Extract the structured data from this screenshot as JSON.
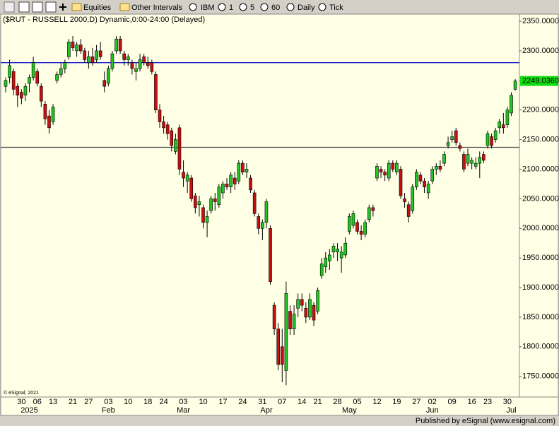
{
  "toolbar": {
    "items": [
      "Equities",
      "Other Intervals",
      "IBM",
      "1",
      "5",
      "60",
      "Daily",
      "Tick"
    ]
  },
  "chart_data": {
    "type": "candlestick",
    "title": "($RUT - RUSSELL 2000,D) Dynamic,0:00-24:00 (Delayed)",
    "watermark": "© eSignal, 2021",
    "categories": [
      null,
      null,
      null,
      null,
      "30",
      null,
      null,
      null,
      "06",
      null,
      null,
      null,
      "13",
      null,
      null,
      null,
      null,
      "21",
      null,
      null,
      null,
      "27",
      null,
      null,
      null,
      null,
      "03",
      null,
      null,
      null,
      null,
      "10",
      null,
      null,
      null,
      null,
      "18",
      null,
      null,
      null,
      "24",
      null,
      null,
      null,
      null,
      "03",
      null,
      null,
      null,
      null,
      "10",
      null,
      null,
      null,
      null,
      "17",
      null,
      null,
      null,
      null,
      "24",
      null,
      null,
      null,
      null,
      "31",
      null,
      null,
      null,
      null,
      "07",
      null,
      null,
      null,
      null,
      "14",
      null,
      null,
      null,
      "21",
      null,
      null,
      null,
      null,
      "28",
      null,
      null,
      null,
      null,
      "05",
      null,
      null,
      null,
      null,
      "12",
      null,
      null,
      null,
      null,
      "19",
      null,
      null,
      null,
      null,
      "27",
      null,
      null,
      null,
      "02",
      null,
      null,
      null,
      null,
      "09",
      null,
      null,
      null,
      null,
      "16",
      null,
      null,
      null,
      "23",
      null,
      null,
      null,
      null,
      "30",
      null,
      null
    ],
    "months": [
      null,
      null,
      null,
      null,
      null,
      null,
      "2025",
      null,
      null,
      null,
      null,
      null,
      null,
      null,
      null,
      null,
      null,
      null,
      null,
      null,
      null,
      null,
      null,
      null,
      null,
      null,
      "Feb",
      null,
      null,
      null,
      null,
      null,
      null,
      null,
      null,
      null,
      null,
      null,
      null,
      null,
      null,
      null,
      null,
      null,
      null,
      "Mar",
      null,
      null,
      null,
      null,
      null,
      null,
      null,
      null,
      null,
      null,
      null,
      null,
      null,
      null,
      null,
      null,
      null,
      null,
      null,
      null,
      "Apr",
      null,
      null,
      null,
      null,
      null,
      null,
      null,
      null,
      null,
      null,
      null,
      null,
      null,
      null,
      null,
      null,
      null,
      null,
      null,
      null,
      "May",
      null,
      null,
      null,
      null,
      null,
      null,
      null,
      null,
      null,
      null,
      null,
      null,
      null,
      null,
      null,
      null,
      null,
      null,
      null,
      null,
      "Jun",
      null,
      null,
      null,
      null,
      null,
      null,
      null,
      null,
      null,
      null,
      null,
      null,
      null,
      null,
      null,
      null,
      null,
      null,
      null,
      "Jul",
      null
    ],
    "open": [
      2240,
      2255,
      2265,
      2240,
      2230,
      2225,
      2245,
      2255,
      2265,
      2240,
      2210,
      2190,
      2180,
      2250,
      2260,
      2270,
      2290,
      2315,
      2300,
      2310,
      2300,
      2280,
      2290,
      2285,
      2300,
      2250,
      2245,
      2270,
      2300,
      2320,
      2295,
      2285,
      2280,
      2265,
      2270,
      2290,
      2280,
      2280,
      2260,
      2200,
      2180,
      2175,
      2165,
      2130,
      2170,
      2095,
      2080,
      2085,
      2055,
      2040,
      2035,
      2010,
      2030,
      2050,
      2040,
      2060,
      2075,
      2070,
      2085,
      2080,
      2110,
      2095,
      2085,
      2060,
      2020,
      2000,
      2010,
      2000,
      1870,
      1830,
      1800,
      1760,
      1860,
      1830,
      1865,
      1880,
      1865,
      1850,
      1870,
      1860,
      1920,
      1935,
      1945,
      1960,
      1960,
      1950,
      1955,
      1995,
      2005,
      2010,
      1995,
      1990,
      2015,
      2035,
      2085,
      2100,
      2095,
      2085,
      2110,
      2095,
      2100,
      2050,
      2040,
      2030,
      2070,
      2090,
      2080,
      2060,
      2080,
      2100,
      2105,
      2110,
      2140,
      2150,
      2165,
      2140,
      2125,
      2110,
      2110,
      2105,
      2110,
      2125,
      2140,
      2155,
      2150,
      2170,
      2175,
      2175,
      2195,
      2235
    ],
    "high": [
      2255,
      2285,
      2270,
      2245,
      2235,
      2245,
      2260,
      2290,
      2270,
      2245,
      2215,
      2200,
      2210,
      2265,
      2280,
      2285,
      2320,
      2325,
      2315,
      2320,
      2305,
      2300,
      2305,
      2310,
      2315,
      2265,
      2275,
      2300,
      2325,
      2325,
      2300,
      2295,
      2285,
      2280,
      2295,
      2295,
      2290,
      2285,
      2265,
      2210,
      2190,
      2180,
      2170,
      2160,
      2175,
      2115,
      2095,
      2090,
      2060,
      2055,
      2040,
      2030,
      2055,
      2060,
      2075,
      2080,
      2085,
      2095,
      2095,
      2115,
      2115,
      2110,
      2090,
      2065,
      2025,
      2015,
      2050,
      2005,
      1875,
      1840,
      1830,
      1910,
      1870,
      1870,
      1890,
      1890,
      1875,
      1890,
      1875,
      1900,
      1950,
      1960,
      1965,
      1975,
      1975,
      1970,
      1985,
      2025,
      2030,
      2015,
      2005,
      2015,
      2040,
      2040,
      2110,
      2105,
      2100,
      2115,
      2115,
      2115,
      2105,
      2060,
      2045,
      2075,
      2100,
      2095,
      2085,
      2080,
      2105,
      2110,
      2115,
      2130,
      2155,
      2165,
      2170,
      2145,
      2130,
      2135,
      2120,
      2120,
      2130,
      2130,
      2165,
      2160,
      2170,
      2185,
      2195,
      2205,
      2230,
      2252
    ],
    "low": [
      2230,
      2245,
      2225,
      2205,
      2210,
      2215,
      2230,
      2250,
      2240,
      2205,
      2175,
      2160,
      2175,
      2245,
      2255,
      2262,
      2285,
      2300,
      2290,
      2295,
      2280,
      2270,
      2275,
      2280,
      2285,
      2230,
      2240,
      2265,
      2295,
      2295,
      2275,
      2275,
      2260,
      2250,
      2265,
      2275,
      2270,
      2260,
      2195,
      2170,
      2160,
      2150,
      2130,
      2125,
      2090,
      2070,
      2060,
      2045,
      2025,
      2020,
      2000,
      1985,
      2025,
      2030,
      2035,
      2050,
      2065,
      2060,
      2065,
      2075,
      2090,
      2085,
      2060,
      2020,
      1990,
      1980,
      2000,
      1905,
      1820,
      1760,
      1740,
      1735,
      1820,
      1820,
      1850,
      1860,
      1840,
      1845,
      1835,
      1855,
      1915,
      1925,
      1930,
      1950,
      1945,
      1925,
      1950,
      1990,
      2000,
      1990,
      1980,
      1985,
      2010,
      2020,
      2080,
      2085,
      2080,
      2080,
      2095,
      2090,
      2050,
      2035,
      2010,
      2025,
      2065,
      2075,
      2060,
      2050,
      2075,
      2090,
      2095,
      2105,
      2135,
      2145,
      2140,
      2130,
      2095,
      2105,
      2100,
      2100,
      2085,
      2110,
      2135,
      2135,
      2145,
      2160,
      2160,
      2170,
      2190,
      2233
    ],
    "close": [
      2250,
      2275,
      2235,
      2225,
      2220,
      2240,
      2255,
      2280,
      2245,
      2215,
      2185,
      2170,
      2205,
      2260,
      2270,
      2280,
      2315,
      2305,
      2310,
      2300,
      2285,
      2290,
      2280,
      2300,
      2290,
      2240,
      2270,
      2295,
      2320,
      2300,
      2285,
      2290,
      2270,
      2270,
      2285,
      2280,
      2275,
      2265,
      2200,
      2180,
      2170,
      2160,
      2140,
      2150,
      2100,
      2085,
      2090,
      2050,
      2035,
      2045,
      2010,
      2020,
      2050,
      2045,
      2070,
      2075,
      2070,
      2090,
      2075,
      2110,
      2095,
      2100,
      2065,
      2025,
      2000,
      2010,
      2045,
      1910,
      1830,
      1770,
      1770,
      1890,
      1830,
      1855,
      1880,
      1870,
      1850,
      1880,
      1845,
      1895,
      1940,
      1950,
      1955,
      1970,
      1965,
      1960,
      1975,
      2020,
      2025,
      1995,
      1990,
      2010,
      2035,
      2030,
      2105,
      2095,
      2090,
      2110,
      2100,
      2110,
      2055,
      2045,
      2020,
      2070,
      2095,
      2080,
      2070,
      2075,
      2100,
      2105,
      2100,
      2125,
      2145,
      2155,
      2145,
      2135,
      2100,
      2125,
      2115,
      2110,
      2120,
      2115,
      2160,
      2140,
      2165,
      2180,
      2170,
      2200,
      2225,
      2249.036
    ],
    "up_color": "#22c522",
    "down_color": "#c81010",
    "hlines": [
      {
        "value": 2280,
        "color": "#1c1ccc"
      },
      {
        "value": 2137,
        "color": "#4a4a4a"
      }
    ],
    "last_price": {
      "value": 2249.036,
      "label": "2249.0360",
      "color": "#11dd11"
    },
    "ylim": [
      1715,
      2362
    ],
    "yticks": [
      {
        "value": 2350,
        "label": "2350.0000"
      },
      {
        "value": 2300,
        "label": "2300.0000"
      },
      {
        "value": 2250,
        "label": "2250.0000"
      },
      {
        "value": 2200,
        "label": "2200.0000"
      },
      {
        "value": 2150,
        "label": "2150.0000"
      },
      {
        "value": 2100,
        "label": "2100.0000"
      },
      {
        "value": 2050,
        "label": "2050.0000"
      },
      {
        "value": 2000,
        "label": "2000.0000"
      },
      {
        "value": 1950,
        "label": "1950.0000"
      },
      {
        "value": 1900,
        "label": "1900.0000"
      },
      {
        "value": 1850,
        "label": "1850.0000"
      },
      {
        "value": 1800,
        "label": "1800.0000"
      },
      {
        "value": 1750,
        "label": "1750.0000"
      }
    ]
  },
  "footer": "Published by eSignal (www.esignal.com)"
}
